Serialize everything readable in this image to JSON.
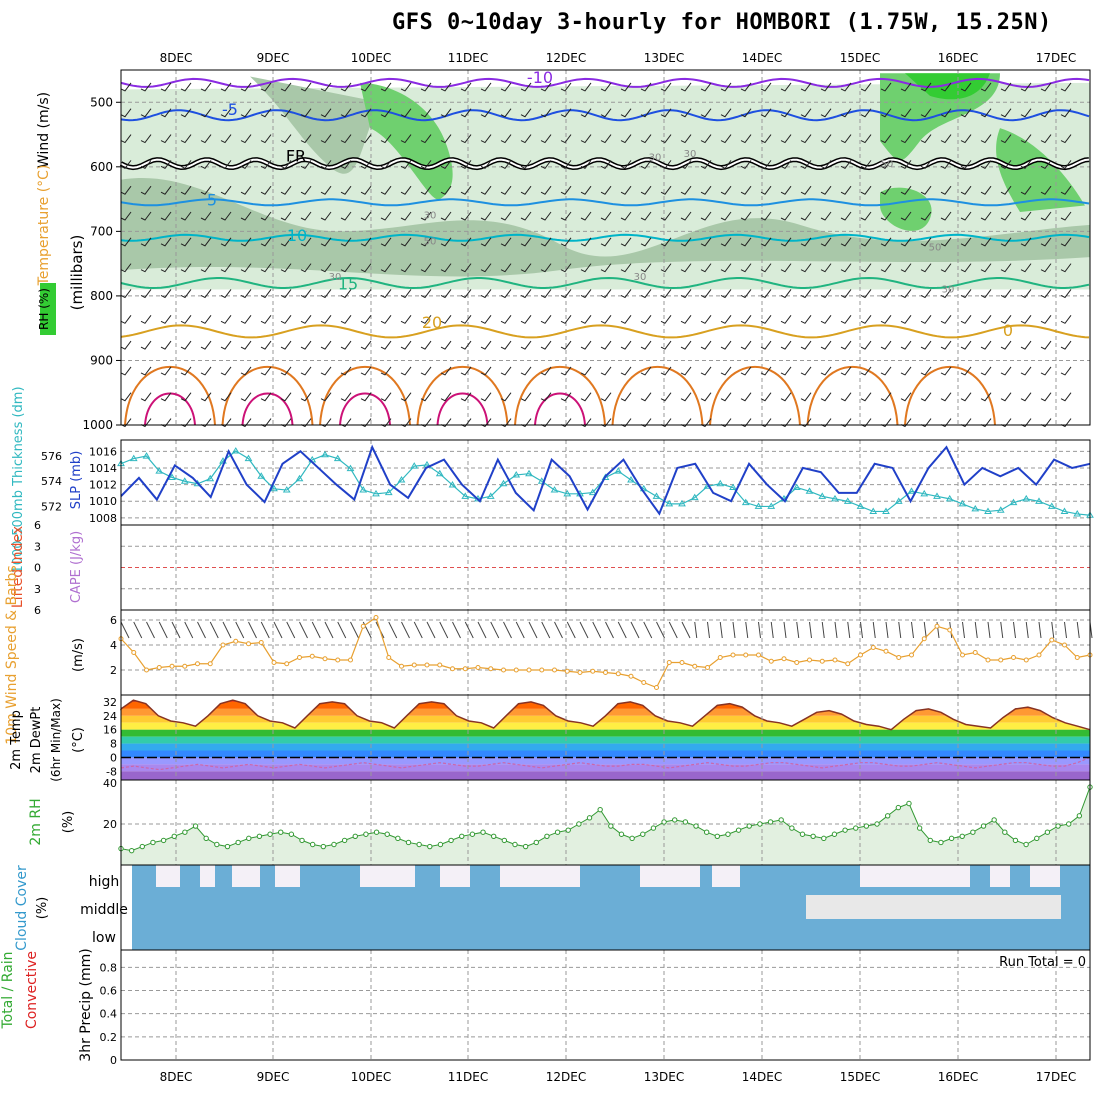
{
  "title": "GFS 0~10day 3-hourly for HOMBORI (1.75W, 15.25N)",
  "dates": [
    "8DEC",
    "9DEC",
    "10DEC",
    "11DEC",
    "12DEC",
    "13DEC",
    "14DEC",
    "15DEC",
    "16DEC",
    "17DEC"
  ],
  "run_total_label": "Run Total = 0",
  "chart_data": [
    {
      "type": "heatmap",
      "panel": "upper-air",
      "ylabel": "(millibars)",
      "left_labels": [
        "Wind (m/s)",
        "Temperature (°C)",
        "RH (%)"
      ],
      "y_ticks": [
        500,
        600,
        700,
        800,
        900,
        1000
      ],
      "ylim": [
        1000,
        450
      ],
      "grid": true,
      "colors": {
        "wind": "#000000",
        "rh_light": "#d9ecd9",
        "rh_mid": "#a9c8a9",
        "rh_high": "#6fd06f",
        "rh_max": "#33cc33"
      },
      "temperature_contour_labels": [
        {
          "label": "-10",
          "color": "#8a2be2"
        },
        {
          "label": "-5",
          "color": "#1e50e0"
        },
        {
          "label": "FR",
          "color": "#000000"
        },
        {
          "label": "5",
          "color": "#1e90e0"
        },
        {
          "label": "10",
          "color": "#00b4c8"
        },
        {
          "label": "15",
          "color": "#20b480"
        },
        {
          "label": "20",
          "color": "#d8a020"
        },
        {
          "label": "0",
          "color": "#d8a020"
        }
      ],
      "rh_contour_labels": [
        "30",
        "50",
        "50",
        "30",
        "30",
        "30",
        "30",
        "50",
        "30"
      ]
    },
    {
      "type": "line",
      "panel": "thickness-slp",
      "left_labels": [
        "1000-500mb Thickness (dm)",
        "SLP (mb)"
      ],
      "y_ticks_left": [
        572,
        574,
        576
      ],
      "y_ticks_right": [
        1008,
        1010,
        1012,
        1014,
        1016
      ],
      "grid": true,
      "series": [
        {
          "name": "1000-500mb Thickness (dm)",
          "color": "#30b8c0",
          "values": [
            575.4,
            575.8,
            576.0,
            574.8,
            574.3,
            574.0,
            573.8,
            574.2,
            575.6,
            576.4,
            575.8,
            574.4,
            573.4,
            573.3,
            574.2,
            575.7,
            576.1,
            575.8,
            575.0,
            573.3,
            573.0,
            573.1,
            574.1,
            575.2,
            575.3,
            574.6,
            573.7,
            572.8,
            572.6,
            572.8,
            573.8,
            574.5,
            574.6,
            574.0,
            573.3,
            573.0,
            573.0,
            573.1,
            574.3,
            574.8,
            574.1,
            573.4,
            572.8,
            572.2,
            572.2,
            572.7,
            573.6,
            573.8,
            573.5,
            572.3,
            572.0,
            572.0,
            572.6,
            573.5,
            573.2,
            572.8,
            572.6,
            572.4,
            572.0,
            571.6,
            571.6,
            572.4,
            573.2,
            573.0,
            572.8,
            572.6,
            572.2,
            571.8,
            571.6,
            571.7,
            572.3,
            572.6,
            572.4,
            572.0,
            571.6,
            571.4,
            571.3
          ]
        },
        {
          "name": "SLP (mb)",
          "color": "#2040c8",
          "values": [
            1010.6,
            1012.8,
            1010.2,
            1014.3,
            1012.8,
            1010.5,
            1016.0,
            1012.0,
            1009.9,
            1014.5,
            1016.0,
            1014.0,
            1012.0,
            1010.2,
            1016.5,
            1012.0,
            1010.4,
            1014.0,
            1015.0,
            1012.0,
            1010.0,
            1015.0,
            1011.0,
            1008.9,
            1015.0,
            1013.0,
            1009.0,
            1013.0,
            1015.0,
            1011.5,
            1008.5,
            1014.0,
            1014.5,
            1011.0,
            1010.0,
            1014.5,
            1012.0,
            1010.0,
            1014.0,
            1013.5,
            1011.0,
            1011.0,
            1014.5,
            1014.0,
            1010.0,
            1014.0,
            1016.5,
            1012.0,
            1014.0,
            1013.0,
            1014.0,
            1012.0,
            1015.0,
            1014.0,
            1014.5
          ]
        }
      ]
    },
    {
      "type": "line",
      "panel": "instability",
      "left_labels": [
        "Lifted Index",
        "CAPE (J/kg)"
      ],
      "y_ticks": [
        6,
        3,
        0,
        -3,
        -6
      ],
      "y_tick_labels": [
        "6",
        "3",
        "0",
        "3",
        "6"
      ],
      "grid": true,
      "reference_line": {
        "value": 0,
        "color": "#e05050"
      }
    },
    {
      "type": "line",
      "panel": "10m-wind",
      "left_labels": [
        "10m Wind Speed & Barbs",
        "(m/s)"
      ],
      "y_ticks": [
        2,
        4,
        6
      ],
      "ylim": [
        0,
        6.8
      ],
      "grid": true,
      "series": [
        {
          "name": "10m Wind Speed",
          "color": "#e8a030",
          "values": [
            4.5,
            3.4,
            2.0,
            2.2,
            2.3,
            2.3,
            2.5,
            2.5,
            4.0,
            4.3,
            4.1,
            4.2,
            2.6,
            2.5,
            3.0,
            3.1,
            2.9,
            2.8,
            2.8,
            5.5,
            6.2,
            3.0,
            2.3,
            2.4,
            2.4,
            2.4,
            2.1,
            2.1,
            2.2,
            2.1,
            2.0,
            2.0,
            2.0,
            2.0,
            2.0,
            1.9,
            1.8,
            1.9,
            1.8,
            1.7,
            1.5,
            1.0,
            0.6,
            2.6,
            2.6,
            2.3,
            2.2,
            3.0,
            3.2,
            3.2,
            3.2,
            2.7,
            2.9,
            2.6,
            2.8,
            2.7,
            2.8,
            2.5,
            3.2,
            3.8,
            3.5,
            3.0,
            3.2,
            4.5,
            5.5,
            5.2,
            3.2,
            3.4,
            2.8,
            2.8,
            3.0,
            2.8,
            3.2,
            4.4,
            4.0,
            3.0,
            3.2
          ]
        }
      ]
    },
    {
      "type": "area",
      "panel": "2m-temp",
      "left_labels": [
        "2m Temp",
        "2m DewPt",
        "(6hr Min/Max)",
        "(°C)"
      ],
      "y_ticks": [
        32,
        24,
        16,
        8,
        0,
        -8
      ],
      "y_tick_labels": [
        "32",
        "24",
        "16",
        "8",
        "0",
        "-8"
      ],
      "grid": true,
      "colors": {
        "temp_fill": "#ff6600",
        "dewpt_fill": "#9966cc"
      },
      "series": [
        {
          "name": "2m Temp",
          "values": [
            28,
            33,
            31,
            24,
            21,
            20,
            18,
            24,
            31,
            33,
            31,
            24,
            21,
            20,
            17,
            24,
            31,
            32,
            31,
            24,
            21,
            20,
            17,
            24,
            31,
            32,
            31,
            24,
            21,
            20,
            17,
            24,
            31,
            32,
            30,
            24,
            21,
            20,
            18,
            24,
            31,
            32,
            30,
            24,
            21,
            20,
            18,
            24,
            30,
            31,
            29,
            24,
            21,
            20,
            18,
            22,
            26,
            27,
            25,
            21,
            19,
            18,
            16,
            22,
            27,
            28,
            26,
            22,
            19,
            18,
            17,
            23,
            28,
            29,
            27,
            23,
            20,
            18,
            16
          ]
        },
        {
          "name": "2m DewPt",
          "values": [
            -6,
            -5,
            -6,
            -7,
            -6,
            -5,
            -4,
            -5,
            -6,
            -5,
            -4,
            -5,
            -6,
            -5,
            -4,
            -5,
            -6,
            -5,
            -4,
            -3,
            -4,
            -5,
            -6,
            -5,
            -4,
            -3,
            -4,
            -5,
            -5,
            -4,
            -3,
            -4,
            -5,
            -6,
            -5,
            -4,
            -3,
            -4,
            -5,
            -5,
            -4,
            -4,
            -5,
            -6,
            -5,
            -4,
            -3,
            -4,
            -5,
            -5,
            -4,
            -3,
            -3,
            -4,
            -5,
            -6,
            -5,
            -4,
            -3,
            -3,
            -4,
            -5,
            -5,
            -4,
            -3,
            -4,
            -5,
            -6,
            -5,
            -4,
            -3,
            -3,
            -4,
            -5,
            -5,
            -3,
            0
          ]
        }
      ]
    },
    {
      "type": "area",
      "panel": "2m-rh",
      "left_labels": [
        "2m RH",
        "(%)"
      ],
      "y_ticks": [
        20,
        40
      ],
      "ylim": [
        0,
        40
      ],
      "grid": true,
      "series": [
        {
          "name": "2m RH",
          "color": "#339933",
          "values": [
            8,
            7,
            9,
            11,
            12,
            14,
            16,
            19,
            13,
            10,
            9,
            11,
            13,
            14,
            15,
            16,
            15,
            12,
            10,
            9,
            10,
            12,
            14,
            15,
            16,
            15,
            13,
            11,
            10,
            9,
            10,
            12,
            14,
            15,
            16,
            14,
            12,
            10,
            9,
            11,
            14,
            16,
            17,
            20,
            23,
            27,
            19,
            15,
            13,
            15,
            18,
            21,
            22,
            21,
            19,
            16,
            14,
            15,
            17,
            19,
            20,
            21,
            22,
            18,
            15,
            14,
            13,
            15,
            17,
            18,
            19,
            20,
            24,
            28,
            30,
            18,
            12,
            11,
            13,
            14,
            16,
            19,
            22,
            16,
            12,
            10,
            13,
            16,
            19,
            20,
            24,
            38
          ]
        }
      ]
    },
    {
      "type": "bar",
      "panel": "cloud-cover",
      "left_labels": [
        "Cloud Cover",
        "(%)"
      ],
      "levels": [
        "high",
        "middle",
        "low"
      ],
      "colors": {
        "cloud": "#6baed6",
        "clear_high": "#f4f0f7",
        "clear_middle": "#e8e8e8"
      }
    },
    {
      "type": "bar",
      "panel": "precip",
      "left_labels": [
        "Total / Rain",
        "Convective",
        "3hr Precip (mm)"
      ],
      "left_label_colors": [
        "#33aa33",
        "#dd2222",
        "#000000"
      ],
      "y_ticks": [
        0,
        0.2,
        0.4,
        0.6,
        0.8
      ],
      "y_tick_labels": [
        "0",
        "0.2",
        "0.4",
        "0.6",
        "0.8"
      ],
      "ylim": [
        0,
        0.95
      ],
      "grid": true,
      "values": []
    }
  ]
}
